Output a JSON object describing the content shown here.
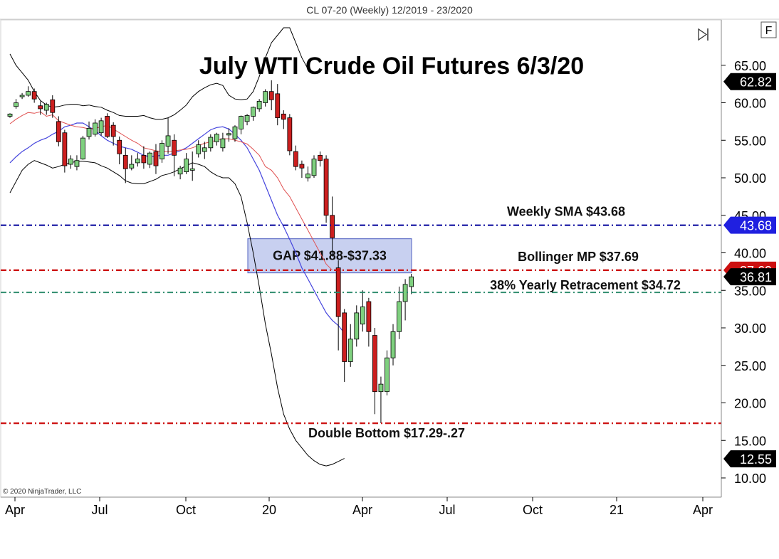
{
  "header": {
    "title": "CL 07-20 (Weekly)  12/2019 - 23/2020"
  },
  "toolbar": {
    "f_label": "F",
    "scroll_end_icon": "scroll-to-end-icon"
  },
  "copyright": "© 2020 NinjaTrader, LLC",
  "colors": {
    "candle_up": "#7fd07f",
    "candle_down": "#cc1f1f",
    "bollinger_band": "#000000",
    "bollinger_mid": "#e05050",
    "sma": "#4444dd",
    "sma_line": "#1010a0",
    "red_line": "#cc1010",
    "green_line": "#2a8a6a",
    "gap_box": "#c8d0f0"
  },
  "chart_data": {
    "type": "candlestick",
    "title": "July WTI Crude Oil Futures 6/3/20",
    "y_axis": {
      "ticks": [
        "65.00",
        "60.00",
        "55.00",
        "50.00",
        "45.00",
        "40.00",
        "35.00",
        "30.00",
        "25.00",
        "20.00",
        "15.00",
        "10.00"
      ],
      "range": [
        8,
        70
      ],
      "position": "right"
    },
    "x_axis": {
      "ticks": [
        "Apr",
        "Jul",
        "Oct",
        "20",
        "Apr",
        "Jul",
        "Oct",
        "21",
        "Apr"
      ]
    },
    "annotations": [
      {
        "label": "Weekly SMA $43.68",
        "value": 43.68
      },
      {
        "label": "Bollinger MP $37.69",
        "value": 37.69
      },
      {
        "label": "38% Yearly Retracement $34.72",
        "value": 34.72
      },
      {
        "label": "Double Bottom $17.29-.27",
        "value": 17.29
      },
      {
        "label": "GAP $41.88-$37.33",
        "range": [
          37.33,
          41.88
        ]
      }
    ],
    "price_tags": [
      {
        "label": "62.82",
        "value": 62.82,
        "color": "#000000"
      },
      {
        "label": "43.68",
        "value": 43.68,
        "color": "#2020e0"
      },
      {
        "label": "37.69",
        "value": 37.69,
        "color": "#cc1010",
        "partially_hidden": true
      },
      {
        "label": "36.81",
        "value": 36.81,
        "color": "#000000"
      },
      {
        "label": "12.55",
        "value": 12.55,
        "color": "#000000"
      }
    ],
    "candles": [
      [
        58.2,
        58.6,
        58.0,
        58.5
      ],
      [
        59.5,
        60.5,
        59.2,
        60.0
      ],
      [
        60.8,
        61.3,
        60.5,
        61.0
      ],
      [
        61.0,
        62.2,
        60.8,
        61.5
      ],
      [
        61.5,
        61.9,
        60.0,
        60.5
      ],
      [
        59.6,
        60.2,
        58.4,
        59.2
      ],
      [
        59.0,
        60.0,
        58.4,
        59.8
      ],
      [
        60.4,
        61.0,
        58.0,
        58.7
      ],
      [
        57.5,
        58.2,
        54.2,
        54.8
      ],
      [
        56.0,
        56.4,
        50.7,
        51.6
      ],
      [
        51.8,
        53.0,
        51.2,
        52.5
      ],
      [
        51.5,
        53.0,
        51.0,
        52.3
      ],
      [
        52.5,
        55.6,
        52.4,
        55.3
      ],
      [
        55.5,
        57.5,
        55.1,
        56.6
      ],
      [
        55.8,
        57.8,
        55.5,
        57.3
      ],
      [
        56.0,
        58.0,
        55.6,
        57.6
      ],
      [
        58.2,
        58.6,
        55.3,
        55.5
      ],
      [
        57.0,
        57.4,
        54.3,
        55.5
      ],
      [
        55.0,
        55.5,
        51.8,
        53.2
      ],
      [
        53.0,
        54.0,
        49.3,
        51.2
      ],
      [
        51.3,
        53.0,
        51.0,
        51.8
      ],
      [
        52.0,
        53.3,
        51.5,
        52.5
      ],
      [
        53.0,
        54.2,
        51.2,
        52.0
      ],
      [
        51.8,
        53.5,
        51.3,
        53.3
      ],
      [
        53.5,
        54.5,
        50.5,
        51.6
      ],
      [
        52.5,
        55.0,
        52.0,
        54.6
      ],
      [
        54.2,
        58.0,
        53.2,
        55.6
      ],
      [
        55.0,
        55.8,
        50.2,
        53.0
      ],
      [
        50.5,
        51.6,
        49.8,
        51.3
      ],
      [
        50.8,
        53.3,
        50.5,
        52.5
      ],
      [
        51.0,
        53.5,
        49.6,
        51.2
      ],
      [
        53.2,
        55.0,
        52.7,
        54.4
      ],
      [
        53.5,
        54.8,
        52.5,
        54.0
      ],
      [
        54.0,
        55.8,
        53.5,
        55.4
      ],
      [
        54.8,
        56.0,
        54.3,
        55.8
      ],
      [
        54.0,
        56.0,
        53.5,
        55.2
      ],
      [
        55.7,
        56.6,
        54.8,
        55.9
      ],
      [
        55.2,
        57.0,
        54.8,
        56.8
      ],
      [
        56.5,
        58.3,
        55.8,
        58.2
      ],
      [
        57.5,
        58.5,
        57.0,
        58.3
      ],
      [
        58.2,
        59.5,
        57.6,
        59.4
      ],
      [
        59.2,
        60.5,
        58.8,
        60.2
      ],
      [
        60.0,
        61.8,
        59.5,
        61.5
      ],
      [
        61.5,
        63.0,
        59.0,
        60.4
      ],
      [
        61.2,
        62.5,
        57.0,
        58.0
      ],
      [
        58.5,
        59.0,
        56.5,
        57.8
      ],
      [
        58.0,
        58.5,
        53.0,
        53.6
      ],
      [
        53.5,
        54.3,
        51.0,
        51.5
      ],
      [
        51.8,
        52.3,
        50.0,
        51.3
      ],
      [
        50.0,
        51.5,
        49.5,
        50.5
      ],
      [
        50.3,
        53.0,
        50.0,
        52.5
      ],
      [
        53.0,
        53.5,
        51.5,
        52.3
      ],
      [
        52.5,
        53.0,
        44.0,
        45.0
      ],
      [
        45.0,
        47.5,
        39.5,
        42.0
      ],
      [
        38.0,
        39.0,
        27.0,
        31.5
      ],
      [
        32.0,
        32.5,
        22.8,
        25.5
      ],
      [
        25.5,
        30.5,
        24.8,
        28.5
      ],
      [
        28.5,
        33.0,
        27.5,
        32.0
      ],
      [
        30.5,
        35.0,
        29.5,
        32.8
      ],
      [
        33.5,
        34.0,
        27.5,
        29.5
      ],
      [
        29.0,
        30.0,
        18.5,
        21.5
      ],
      [
        21.5,
        23.5,
        17.3,
        22.5
      ],
      [
        21.5,
        27.0,
        21.0,
        26.0
      ],
      [
        26.0,
        30.5,
        25.0,
        29.5
      ],
      [
        29.5,
        35.5,
        28.5,
        33.5
      ],
      [
        33.5,
        36.5,
        31.0,
        35.8
      ],
      [
        35.5,
        37.2,
        34.5,
        36.8
      ]
    ],
    "bollinger_mid": [
      [
        57.2,
        57.8
      ],
      [
        58.3,
        58.7
      ],
      [
        58.6,
        58.8
      ],
      [
        58.2,
        58.4
      ],
      [
        57.6,
        57.3
      ],
      [
        57.0,
        56.8
      ],
      [
        56.7,
        56.5
      ],
      [
        56.6,
        56.8
      ],
      [
        57.0,
        56.5
      ],
      [
        56.0,
        55.5
      ],
      [
        55.0,
        54.6
      ],
      [
        54.0,
        53.8
      ],
      [
        53.6,
        53.5
      ],
      [
        53.5,
        53.6
      ],
      [
        53.7,
        53.8
      ],
      [
        54.0,
        54.3
      ],
      [
        54.6,
        54.8
      ],
      [
        55.0,
        55.2
      ],
      [
        55.2,
        55.0
      ],
      [
        54.8,
        54.5
      ],
      [
        53.8,
        53.0
      ],
      [
        51.5,
        51.0
      ],
      [
        50.0,
        48.5
      ],
      [
        47.5,
        46.0
      ],
      [
        44.5,
        43.0
      ],
      [
        41.5,
        40.0
      ],
      [
        38.5,
        37.7
      ]
    ],
    "bollinger_upper": [
      [
        66.5,
        65.0
      ],
      [
        64.0,
        63.0
      ],
      [
        61.5,
        60.3
      ],
      [
        59.7,
        59.4
      ],
      [
        59.5,
        59.7
      ],
      [
        59.8,
        59.8
      ],
      [
        59.6,
        59.7
      ],
      [
        59.5,
        59.4
      ],
      [
        59.0,
        58.7
      ],
      [
        58.3,
        58.2
      ],
      [
        58.2,
        58.2
      ],
      [
        58.3,
        58.0
      ],
      [
        57.8,
        57.8
      ],
      [
        58.0,
        58.4
      ],
      [
        59.0,
        59.7
      ],
      [
        60.8,
        61.5
      ],
      [
        62.0,
        62.4
      ],
      [
        62.6,
        62.3
      ],
      [
        61.0,
        60.5
      ],
      [
        60.4,
        60.5
      ],
      [
        61.5,
        63.5
      ],
      [
        66.0,
        68.0
      ],
      [
        69.0,
        70.0
      ],
      [
        70.0,
        68.0
      ],
      [
        66.0,
        64.5
      ]
    ],
    "bollinger_lower": [
      [
        48.0,
        49.5
      ],
      [
        51.0,
        51.8
      ],
      [
        52.3,
        52.0
      ],
      [
        51.7,
        51.3
      ],
      [
        51.5,
        51.8
      ],
      [
        52.0,
        52.2
      ],
      [
        52.2,
        52.1
      ],
      [
        52.0,
        51.6
      ],
      [
        51.3,
        50.8
      ],
      [
        50.3,
        49.6
      ],
      [
        49.3,
        49.2
      ],
      [
        49.2,
        49.5
      ],
      [
        49.8,
        50.3
      ],
      [
        50.5,
        50.8
      ],
      [
        51.2,
        51.6
      ],
      [
        52.0,
        51.8
      ],
      [
        51.5,
        50.8
      ],
      [
        50.3,
        50.0
      ],
      [
        50.0,
        49.2
      ],
      [
        47.5,
        44.0
      ],
      [
        40.0,
        35.5
      ],
      [
        30.5,
        26.5
      ],
      [
        22.0,
        18.5
      ],
      [
        16.5,
        15.0
      ],
      [
        14.0,
        13.0
      ],
      [
        12.3,
        11.8
      ],
      [
        11.6,
        11.8
      ],
      [
        12.2,
        12.6
      ]
    ],
    "sma": [
      [
        52.0,
        52.8
      ],
      [
        53.5,
        54.0
      ],
      [
        54.6,
        55.0
      ],
      [
        55.3,
        55.8
      ],
      [
        56.2,
        56.8
      ],
      [
        57.0,
        57.3
      ],
      [
        57.3,
        56.8
      ],
      [
        56.3,
        55.6
      ],
      [
        55.0,
        54.6
      ],
      [
        54.2,
        54.0
      ],
      [
        53.8,
        53.4
      ],
      [
        53.0,
        52.8
      ],
      [
        52.9,
        53.0
      ],
      [
        53.0,
        53.3
      ],
      [
        53.6,
        54.0
      ],
      [
        54.6,
        55.2
      ],
      [
        55.8,
        56.4
      ],
      [
        56.7,
        56.8
      ],
      [
        56.5,
        55.8
      ],
      [
        55.0,
        54.0
      ],
      [
        52.5,
        51.0
      ],
      [
        49.0,
        47.0
      ],
      [
        45.0,
        43.5
      ],
      [
        41.8,
        40.0
      ],
      [
        38.0,
        36.5
      ],
      [
        35.0,
        33.5
      ],
      [
        32.0,
        31.0
      ],
      [
        30.3,
        29.3
      ]
    ]
  }
}
